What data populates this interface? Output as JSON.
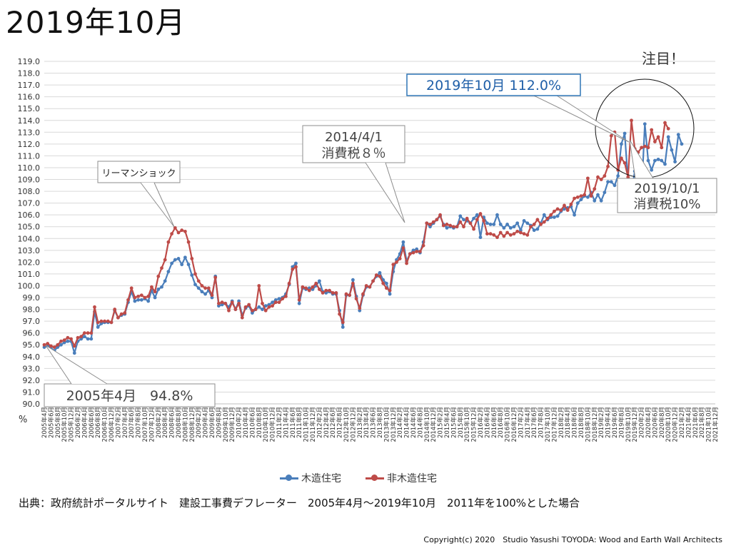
{
  "page_title": "2019年10月",
  "legend": {
    "wood": "木造住宅",
    "nonwood": "非木造住宅"
  },
  "source_note": "出典：政府統計ポータルサイト　建設工事費デフレーター　2005年4月～2019年10月　2011年を100%とした場合",
  "copyright": "Copyright(c) 2020　Studio Yasushi TOYODA: Wood and Earth Wall Architects",
  "colors": {
    "wood": "#4a7ebb",
    "nonwood": "#be4b48",
    "grid": "#d9d9d9",
    "callout_border": "#8c8c8c",
    "highlight_border": "#2e75b6",
    "highlight_text": "#1f5fa8"
  },
  "chart_data": {
    "type": "line",
    "title": "",
    "ylabel": "%",
    "ylim": [
      90,
      119
    ],
    "ytick_step": 1,
    "x_start": "2005年4月",
    "x_end": "2021年12月",
    "x_tick_labels": [
      "2005年4月",
      "2005年6月",
      "2005年8月",
      "2005年10月",
      "2005年12月",
      "2006年2月",
      "2006年4月",
      "2006年6月",
      "2006年8月",
      "2006年10月",
      "2006年12月",
      "2007年2月",
      "2007年4月",
      "2007年6月",
      "2007年8月",
      "2007年10月",
      "2007年12月",
      "2008年2月",
      "2008年4月",
      "2008年6月",
      "2008年8月",
      "2008年10月",
      "2008年12月",
      "2009年2月",
      "2009年4月",
      "2009年6月",
      "2009年8月",
      "2009年10月",
      "2009年12月",
      "2010年2月",
      "2010年4月",
      "2010年6月",
      "2010年8月",
      "2010年10月",
      "2010年12月",
      "2011年2月",
      "2011年4月",
      "2011年6月",
      "2011年8月",
      "2011年10月",
      "2011年12月",
      "2012年2月",
      "2012年4月",
      "2012年6月",
      "2012年8月",
      "2012年10月",
      "2012年12月",
      "2013年2月",
      "2013年4月",
      "2013年6月",
      "2013年8月",
      "2013年10月",
      "2013年12月",
      "2014年2月",
      "2014年4月",
      "2014年6月",
      "2014年8月",
      "2014年10月",
      "2014年12月",
      "2015年2月",
      "2015年4月",
      "2015年6月",
      "2015年8月",
      "2015年10月",
      "2015年12月",
      "2016年2月",
      "2016年4月",
      "2016年6月",
      "2016年8月",
      "2016年10月",
      "2016年12月",
      "2017年2月",
      "2017年4月",
      "2017年6月",
      "2017年8月",
      "2017年10月",
      "2017年12月",
      "2018年2月",
      "2018年4月",
      "2018年6月",
      "2018年8月",
      "2018年10月",
      "2018年12月",
      "2019年2月",
      "2019年4月",
      "2019年6月",
      "2019年8月",
      "2019年10月",
      "2019年12月",
      "2020年2月",
      "2020年4月",
      "2020年6月",
      "2020年8月",
      "2020年10月",
      "2020年12月",
      "2021年2月",
      "2021年4月",
      "2021年6月",
      "2021年8月",
      "2021年10月",
      "2021年12月"
    ],
    "series": [
      {
        "name": "木造住宅",
        "values": [
          94.8,
          94.9,
          94.7,
          94.5,
          94.8,
          95.0,
          95.2,
          95.3,
          95.3,
          94.3,
          95.3,
          95.5,
          95.7,
          95.5,
          95.5,
          97.8,
          96.5,
          96.8,
          96.9,
          96.9,
          96.9,
          97.9,
          97.3,
          97.5,
          97.6,
          98.6,
          99.5,
          98.7,
          98.8,
          98.8,
          98.9,
          98.7,
          99.6,
          99.0,
          99.7,
          99.9,
          100.4,
          101.2,
          101.9,
          102.2,
          102.3,
          101.8,
          102.4,
          101.8,
          100.9,
          100.1,
          99.8,
          99.5,
          99.3,
          99.6,
          99.0,
          100.8,
          98.3,
          98.4,
          98.5,
          98.2,
          98.7,
          98.0,
          98.7,
          97.5,
          98.1,
          98.3,
          97.7,
          98.0,
          98.2,
          98.0,
          98.3,
          98.4,
          98.6,
          98.8,
          98.9,
          99.0,
          99.3,
          100.1,
          101.6,
          101.9,
          98.5,
          99.8,
          99.7,
          99.8,
          99.7,
          100.0,
          100.4,
          99.5,
          99.4,
          99.5,
          99.3,
          99.3,
          97.9,
          96.5,
          99.2,
          99.2,
          100.5,
          99.1,
          97.9,
          99.2,
          99.9,
          99.9,
          100.4,
          100.8,
          101.1,
          100.5,
          100.2,
          99.3,
          101.2,
          102.2,
          102.7,
          103.7,
          102.1,
          102.7,
          103.0,
          103.1,
          102.8,
          103.7,
          105.3,
          105.0,
          105.3,
          105.6,
          105.9,
          105.2,
          104.9,
          105.0,
          104.9,
          105.0,
          105.9,
          105.6,
          105.5,
          105.3,
          105.7,
          106.0,
          104.1,
          105.8,
          105.3,
          105.2,
          105.2,
          106.0,
          105.2,
          104.9,
          105.2,
          104.9,
          105.0,
          105.3,
          104.7,
          105.5,
          105.3,
          105.1,
          104.7,
          104.8,
          105.3,
          106.0,
          105.6,
          105.8,
          105.8,
          105.9,
          106.3,
          106.5,
          106.6,
          106.7,
          106.0,
          107.0,
          107.3,
          107.6,
          107.5,
          107.9,
          107.2,
          107.7,
          107.2,
          107.9,
          108.8,
          108.8,
          108.5,
          109.3,
          112.0,
          112.9,
          108.8,
          107.8,
          109.7,
          109.3,
          107.7,
          113.7,
          110.6,
          109.8,
          110.6,
          110.7,
          110.6,
          110.3,
          112.6,
          111.5,
          110.5,
          112.8,
          112.0
        ],
        "color": "#4a7ebb"
      },
      {
        "name": "非木造住宅",
        "values": [
          95.0,
          95.1,
          94.9,
          94.8,
          95.0,
          95.3,
          95.4,
          95.6,
          95.5,
          94.9,
          95.6,
          95.7,
          96.0,
          96.0,
          96.0,
          98.2,
          96.9,
          97.0,
          97.0,
          97.0,
          96.9,
          98.0,
          97.3,
          97.6,
          97.7,
          98.8,
          99.8,
          99.0,
          99.1,
          99.2,
          99.0,
          99.1,
          99.9,
          99.5,
          100.8,
          101.5,
          102.2,
          103.7,
          104.4,
          104.9,
          104.5,
          104.7,
          104.6,
          103.7,
          102.3,
          101.0,
          100.4,
          100.0,
          99.8,
          99.8,
          99.2,
          100.7,
          98.5,
          98.6,
          98.5,
          97.9,
          98.6,
          98.0,
          98.5,
          97.3,
          98.2,
          98.4,
          97.9,
          98.0,
          100.0,
          98.5,
          97.9,
          98.2,
          98.3,
          98.6,
          98.6,
          98.9,
          99.1,
          100.2,
          101.4,
          101.6,
          98.8,
          99.9,
          99.8,
          99.6,
          99.9,
          100.2,
          99.7,
          99.4,
          99.6,
          99.6,
          99.4,
          99.4,
          97.6,
          96.9,
          99.3,
          99.2,
          100.2,
          98.9,
          98.1,
          99.3,
          100.0,
          99.9,
          100.4,
          100.9,
          100.8,
          100.2,
          99.8,
          99.6,
          101.8,
          102.0,
          102.3,
          103.2,
          101.9,
          102.7,
          102.8,
          102.9,
          102.9,
          103.4,
          105.3,
          105.2,
          105.4,
          105.6,
          106.0,
          105.1,
          105.2,
          105.1,
          105.0,
          105.0,
          105.4,
          105.0,
          105.7,
          105.3,
          104.8,
          105.6,
          106.1,
          105.5,
          104.4,
          104.4,
          104.3,
          104.1,
          104.5,
          104.2,
          104.5,
          104.3,
          104.4,
          104.6,
          104.5,
          104.4,
          104.3,
          105.0,
          105.2,
          105.6,
          105.2,
          105.4,
          105.7,
          106.0,
          106.3,
          106.5,
          106.4,
          106.8,
          106.4,
          106.9,
          107.4,
          107.5,
          107.6,
          107.7,
          109.1,
          107.6,
          108.2,
          109.2,
          109.0,
          109.3,
          110.1,
          112.7,
          113.0,
          109.8,
          110.8,
          110.4,
          109.2,
          114.0,
          111.6,
          111.3,
          111.7,
          111.8,
          111.7,
          113.2,
          112.2,
          112.6,
          111.7,
          113.8,
          113.3
        ],
        "color": "#be4b48"
      }
    ],
    "annotations": [
      {
        "text": "リーマンショック"
      },
      {
        "text": "2014/4/1",
        "text2": "消費税８％"
      },
      {
        "text": "2005年4月　94.8%"
      },
      {
        "text": "2019年10月 112.0%"
      },
      {
        "text": "2019/10/1",
        "text2": "消費税10%"
      },
      {
        "text": "注目！"
      }
    ]
  }
}
